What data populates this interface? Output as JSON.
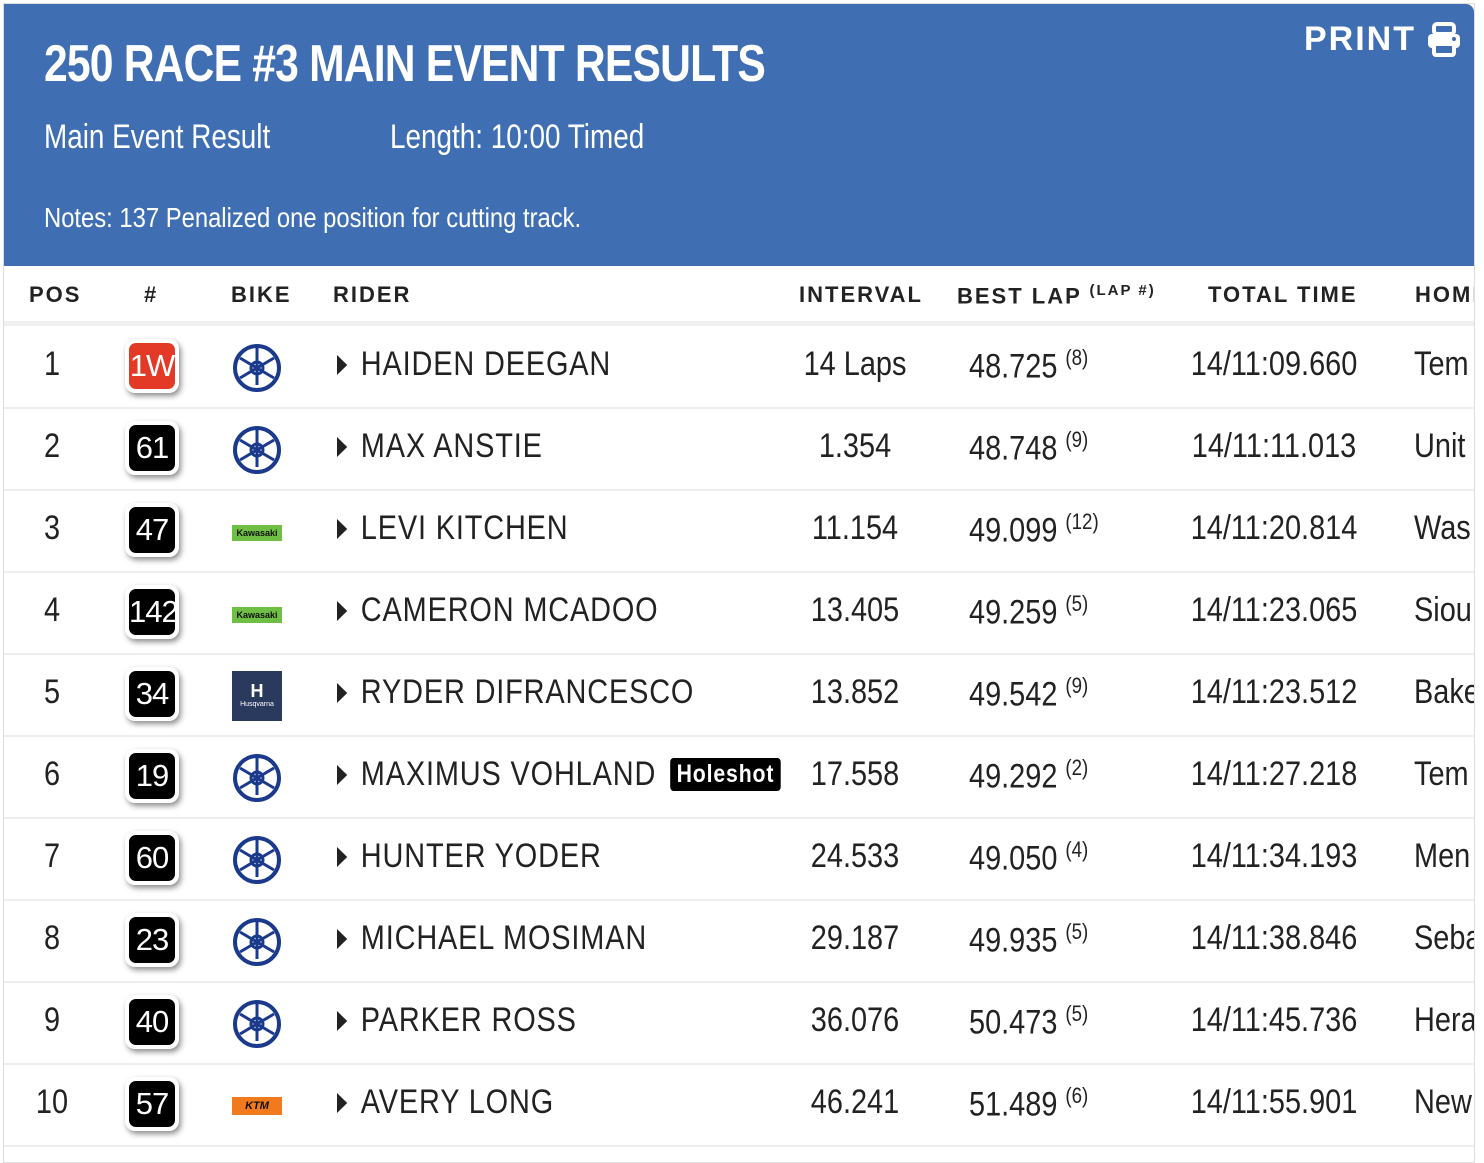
{
  "header": {
    "title": "250 RACE #3 MAIN EVENT RESULTS",
    "subtitle": "Main Event Result",
    "length": "Length: 10:00 Timed",
    "notes": "Notes: 137 Penalized one position for cutting track.",
    "print_label": "PRINT"
  },
  "columns": {
    "pos": "POS",
    "num": "#",
    "bike": "BIKE",
    "rider": "RIDER",
    "interval": "INTERVAL",
    "best_lap": "BEST LAP",
    "lap_no": "(LAP #)",
    "total": "TOTAL TIME",
    "home": "HOMI"
  },
  "colors": {
    "header": "#3f6fb2",
    "red_plate": "#e23a26",
    "yamaha": "#1b3a8c",
    "kawasaki": "#6fbf44",
    "husqvarna": "#2a3a5e",
    "ktm": "#f07a1d"
  },
  "rows": [
    {
      "pos": "1",
      "num": "1W",
      "bike": "yamaha",
      "rider": "HAIDEN DEEGAN",
      "interval": "14 Laps",
      "best": "48.725",
      "lap": "(8)",
      "total": "14/11:09.660",
      "home": "Tem",
      "red": true
    },
    {
      "pos": "2",
      "num": "61",
      "bike": "yamaha",
      "rider": "MAX ANSTIE",
      "interval": "1.354",
      "best": "48.748",
      "lap": "(9)",
      "total": "14/11:11.013",
      "home": "Unit"
    },
    {
      "pos": "3",
      "num": "47",
      "bike": "kawasaki",
      "rider": "LEVI KITCHEN",
      "interval": "11.154",
      "best": "49.099",
      "lap": "(12)",
      "total": "14/11:20.814",
      "home": "Was"
    },
    {
      "pos": "4",
      "num": "142",
      "bike": "kawasaki",
      "rider": "CAMERON MCADOO",
      "interval": "13.405",
      "best": "49.259",
      "lap": "(5)",
      "total": "14/11:23.065",
      "home": "Siou"
    },
    {
      "pos": "5",
      "num": "34",
      "bike": "husqvarna",
      "rider": "RYDER DIFRANCESCO",
      "interval": "13.852",
      "best": "49.542",
      "lap": "(9)",
      "total": "14/11:23.512",
      "home": "Bake"
    },
    {
      "pos": "6",
      "num": "19",
      "bike": "yamaha",
      "rider": "MAXIMUS VOHLAND",
      "badge": "Holeshot",
      "interval": "17.558",
      "best": "49.292",
      "lap": "(2)",
      "total": "14/11:27.218",
      "home": "Tem"
    },
    {
      "pos": "7",
      "num": "60",
      "bike": "yamaha",
      "rider": "HUNTER YODER",
      "interval": "24.533",
      "best": "49.050",
      "lap": "(4)",
      "total": "14/11:34.193",
      "home": "Men"
    },
    {
      "pos": "8",
      "num": "23",
      "bike": "yamaha",
      "rider": "MICHAEL MOSIMAN",
      "interval": "29.187",
      "best": "49.935",
      "lap": "(5)",
      "total": "14/11:38.846",
      "home": "Seba"
    },
    {
      "pos": "9",
      "num": "40",
      "bike": "yamaha",
      "rider": "PARKER ROSS",
      "interval": "36.076",
      "best": "50.473",
      "lap": "(5)",
      "total": "14/11:45.736",
      "home": "Hera"
    },
    {
      "pos": "10",
      "num": "57",
      "bike": "ktm",
      "rider": "AVERY LONG",
      "interval": "46.241",
      "best": "51.489",
      "lap": "(6)",
      "total": "14/11:55.901",
      "home": "New"
    }
  ],
  "brands": {
    "kawasaki": "Kawasaki",
    "husqvarna": "Husqvarna",
    "ktm": "KTM"
  }
}
